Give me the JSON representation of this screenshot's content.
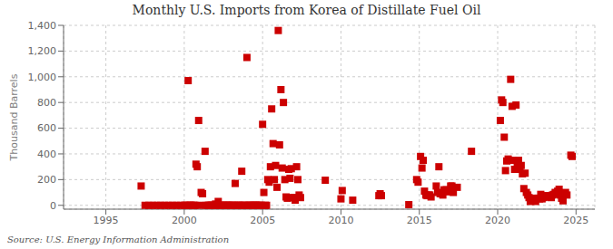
{
  "chart_data": {
    "type": "scatter",
    "title": "Monthly U.S. Imports from Korea of Distillate Fuel Oil",
    "ylabel": "Thousand Barrels",
    "annotation": "Source: U.S. Energy Information Administration",
    "xlim": [
      1992.3,
      2026.2
    ],
    "xticks": [
      1995,
      2000,
      2005,
      2010,
      2015,
      2020,
      2025
    ],
    "ylim": [
      -30,
      1400
    ],
    "yticks": [
      0,
      200,
      400,
      600,
      800,
      {
        "value": 1000,
        "label": "1,000"
      },
      {
        "value": 1200,
        "label": "1,200"
      },
      {
        "value": 1400,
        "label": "1,400"
      }
    ],
    "grid": true,
    "color": "#cc0000",
    "marker": "square",
    "x": [
      1997.25,
      2000.25,
      2000.75,
      2000.83,
      2000.92,
      2001.08,
      2001.17,
      2001.33,
      2002.0,
      2002.17,
      2003.25,
      2003.67,
      2004.0,
      2005.0,
      2005.08,
      2005.33,
      2005.42,
      2005.5,
      2005.58,
      2005.67,
      2005.75,
      2005.83,
      2005.92,
      2006.0,
      2006.08,
      2006.17,
      2006.25,
      2006.33,
      2006.42,
      2006.5,
      2006.58,
      2006.67,
      2006.75,
      2006.83,
      2006.92,
      2007.0,
      2007.08,
      2007.17,
      2007.25,
      2007.33,
      2007.42,
      2009.0,
      2010.0,
      2010.08,
      2010.75,
      2012.42,
      2012.5,
      2012.58,
      2014.33,
      2014.83,
      2014.92,
      2015.08,
      2015.17,
      2015.25,
      2015.33,
      2015.42,
      2015.5,
      2015.58,
      2015.67,
      2015.75,
      2016.08,
      2016.17,
      2016.25,
      2016.33,
      2016.5,
      2016.58,
      2016.67,
      2016.75,
      2016.83,
      2016.92,
      2017.0,
      2017.08,
      2017.17,
      2017.42,
      2018.33,
      2020.17,
      2020.25,
      2020.33,
      2020.42,
      2020.5,
      2020.58,
      2020.67,
      2020.75,
      2020.83,
      2020.92,
      2021.0,
      2021.08,
      2021.17,
      2021.25,
      2021.33,
      2021.42,
      2021.5,
      2021.58,
      2021.67,
      2021.75,
      2021.83,
      2021.92,
      2022.0,
      2022.08,
      2022.17,
      2022.25,
      2022.33,
      2022.42,
      2022.5,
      2022.58,
      2022.67,
      2022.75,
      2022.83,
      2022.92,
      2023.0,
      2023.08,
      2023.17,
      2023.25,
      2023.33,
      2023.42,
      2023.5,
      2023.58,
      2023.67,
      2023.75,
      2023.83,
      2023.92,
      2024.0,
      2024.08,
      2024.17,
      2024.25,
      2024.33,
      2024.42,
      2024.67,
      2024.75,
      1997.5,
      1997.75,
      1998.0,
      1998.25,
      1998.5,
      1998.75,
      1999.0,
      1999.25,
      1999.5,
      1999.75,
      2000.0,
      2000.08,
      2000.17,
      2000.33,
      2000.42,
      2000.5,
      2000.58,
      2000.67,
      2001.0,
      2001.42,
      2001.5,
      2001.58,
      2001.67,
      2001.75,
      2001.83,
      2001.92,
      2002.08,
      2002.25,
      2002.33,
      2002.42,
      2002.5,
      2002.58,
      2002.67,
      2002.75,
      2002.83,
      2002.92,
      2003.0,
      2003.08,
      2003.17,
      2003.33,
      2003.42,
      2003.5,
      2003.58,
      2003.75,
      2003.83,
      2003.92,
      2004.08,
      2004.17,
      2004.25,
      2004.33,
      2004.42,
      2004.5,
      2004.58,
      2004.67,
      2004.75,
      2004.83,
      2004.92,
      2005.17,
      2005.25
    ],
    "values": [
      150,
      970,
      320,
      300,
      660,
      100,
      90,
      420,
      10,
      30,
      170,
      265,
      1150,
      630,
      100,
      200,
      180,
      300,
      750,
      480,
      200,
      310,
      140,
      1360,
      470,
      900,
      290,
      800,
      200,
      65,
      55,
      280,
      210,
      285,
      60,
      60,
      40,
      300,
      200,
      80,
      60,
      195,
      50,
      115,
      40,
      75,
      90,
      75,
      5,
      200,
      180,
      380,
      290,
      350,
      110,
      80,
      75,
      80,
      80,
      65,
      150,
      100,
      300,
      90,
      80,
      120,
      120,
      120,
      110,
      105,
      150,
      150,
      100,
      140,
      420,
      660,
      820,
      800,
      530,
      270,
      345,
      360,
      350,
      980,
      770,
      350,
      280,
      780,
      310,
      350,
      280,
      310,
      245,
      130,
      250,
      100,
      80,
      60,
      30,
      40,
      35,
      55,
      30,
      55,
      55,
      50,
      85,
      50,
      60,
      65,
      75,
      70,
      75,
      65,
      60,
      80,
      85,
      100,
      95,
      110,
      125,
      80,
      55,
      35,
      90,
      100,
      80,
      390,
      380,
      0,
      0,
      0,
      0,
      0,
      0,
      0,
      0,
      0,
      0,
      0,
      0,
      0,
      0,
      0,
      0,
      0,
      0,
      0,
      0,
      0,
      0,
      0,
      0,
      0,
      0,
      0,
      0,
      0,
      0,
      0,
      0,
      0,
      0,
      0,
      0,
      0,
      0,
      0,
      0,
      0,
      0,
      0,
      0,
      0,
      0,
      0,
      0,
      0,
      0,
      0,
      0,
      0,
      0,
      0,
      0,
      0,
      0,
      0
    ]
  }
}
